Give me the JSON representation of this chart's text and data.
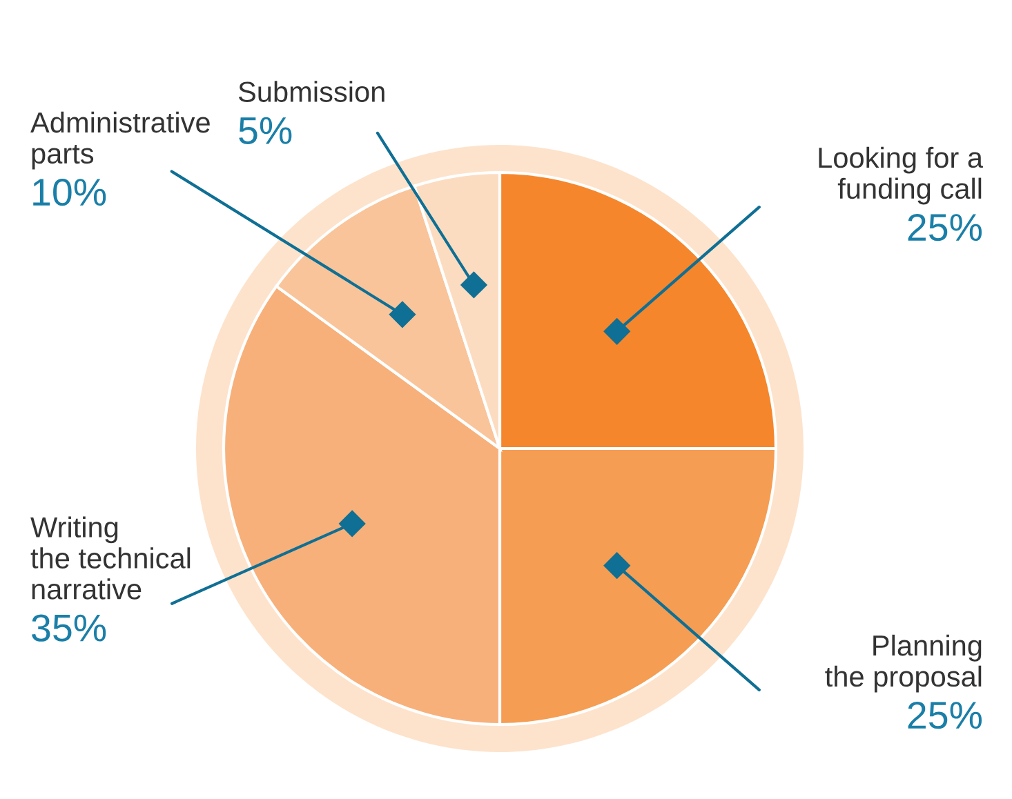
{
  "chart_data": {
    "type": "pie",
    "categories": [
      "Looking for a\nfunding call",
      "Planning\nthe proposal",
      "Writing\nthe technical\nnarrative",
      "Administrative\nparts",
      "Submission"
    ],
    "values": [
      25,
      25,
      35,
      10,
      5
    ],
    "value_labels": [
      "25%",
      "25%",
      "35%",
      "10%",
      "5%"
    ],
    "colors": [
      "#f5862b",
      "#f59d52",
      "#f7b07a",
      "#f9c49a",
      "#fcdcc0"
    ],
    "legend": false
  }
}
